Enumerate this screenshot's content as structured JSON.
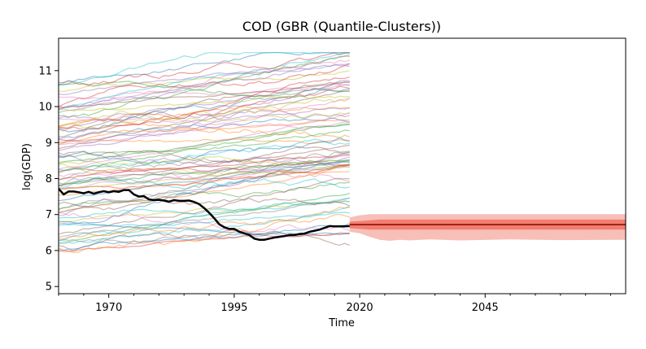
{
  "chart_data": {
    "type": "line",
    "title": "COD (GBR (Quantile-Clusters))",
    "xlabel": "Time",
    "ylabel": "log(GDP)",
    "xlim": [
      1960,
      2073
    ],
    "ylim": [
      4.8,
      11.9
    ],
    "x_ticks": [
      1970,
      1995,
      2020,
      2045
    ],
    "y_ticks": [
      5,
      6,
      7,
      8,
      9,
      10,
      11
    ],
    "grid": false,
    "legend": "none",
    "background_series": {
      "description_visible": false,
      "count": 80,
      "x_range": [
        1960,
        2018
      ],
      "y_range": [
        5.3,
        11.5
      ],
      "alpha": 0.45
    },
    "highlight_series": {
      "color": "#000000",
      "x": [
        1960,
        1961,
        1962,
        1963,
        1964,
        1965,
        1966,
        1967,
        1968,
        1969,
        1970,
        1971,
        1972,
        1973,
        1974,
        1975,
        1976,
        1977,
        1978,
        1979,
        1980,
        1981,
        1982,
        1983,
        1984,
        1985,
        1986,
        1987,
        1988,
        1989,
        1990,
        1991,
        1992,
        1993,
        1994,
        1995,
        1996,
        1997,
        1998,
        1999,
        2000,
        2001,
        2002,
        2003,
        2004,
        2005,
        2006,
        2007,
        2008,
        2009,
        2010,
        2011,
        2012,
        2013,
        2014,
        2015,
        2016,
        2017,
        2018
      ],
      "y": [
        7.72,
        7.56,
        7.64,
        7.64,
        7.62,
        7.59,
        7.63,
        7.58,
        7.62,
        7.65,
        7.62,
        7.65,
        7.63,
        7.68,
        7.68,
        7.56,
        7.5,
        7.51,
        7.42,
        7.4,
        7.41,
        7.39,
        7.36,
        7.4,
        7.38,
        7.38,
        7.39,
        7.35,
        7.29,
        7.18,
        7.05,
        6.9,
        6.73,
        6.65,
        6.6,
        6.6,
        6.52,
        6.48,
        6.43,
        6.33,
        6.3,
        6.3,
        6.33,
        6.36,
        6.38,
        6.4,
        6.43,
        6.43,
        6.46,
        6.47,
        6.52,
        6.55,
        6.58,
        6.63,
        6.68,
        6.67,
        6.67,
        6.67,
        6.68
      ]
    },
    "forecast": {
      "x_range": [
        2018,
        2073
      ],
      "median": 6.72,
      "band_color": "#f4a49a",
      "inner_band_color": "#ef6f5e",
      "median_color": "#8b0000",
      "outer_band": {
        "x": [
          2018,
          2020,
          2022,
          2024,
          2026,
          2028,
          2030,
          2034,
          2040,
          2050,
          2060,
          2073
        ],
        "upper": [
          6.92,
          6.98,
          7.01,
          7.01,
          7.01,
          7.01,
          7.01,
          7.01,
          7.01,
          7.01,
          7.01,
          7.01
        ],
        "lower": [
          6.52,
          6.48,
          6.38,
          6.3,
          6.27,
          6.3,
          6.28,
          6.31,
          6.28,
          6.31,
          6.29,
          6.3
        ]
      },
      "inner_band": {
        "x": [
          2018,
          2020,
          2022,
          2024,
          2026,
          2028,
          2030,
          2040,
          2060,
          2073
        ],
        "upper": [
          6.8,
          6.82,
          6.84,
          6.86,
          6.86,
          6.86,
          6.86,
          6.86,
          6.86,
          6.86
        ],
        "lower": [
          6.62,
          6.6,
          6.58,
          6.58,
          6.58,
          6.58,
          6.58,
          6.58,
          6.58,
          6.58
        ]
      }
    }
  }
}
